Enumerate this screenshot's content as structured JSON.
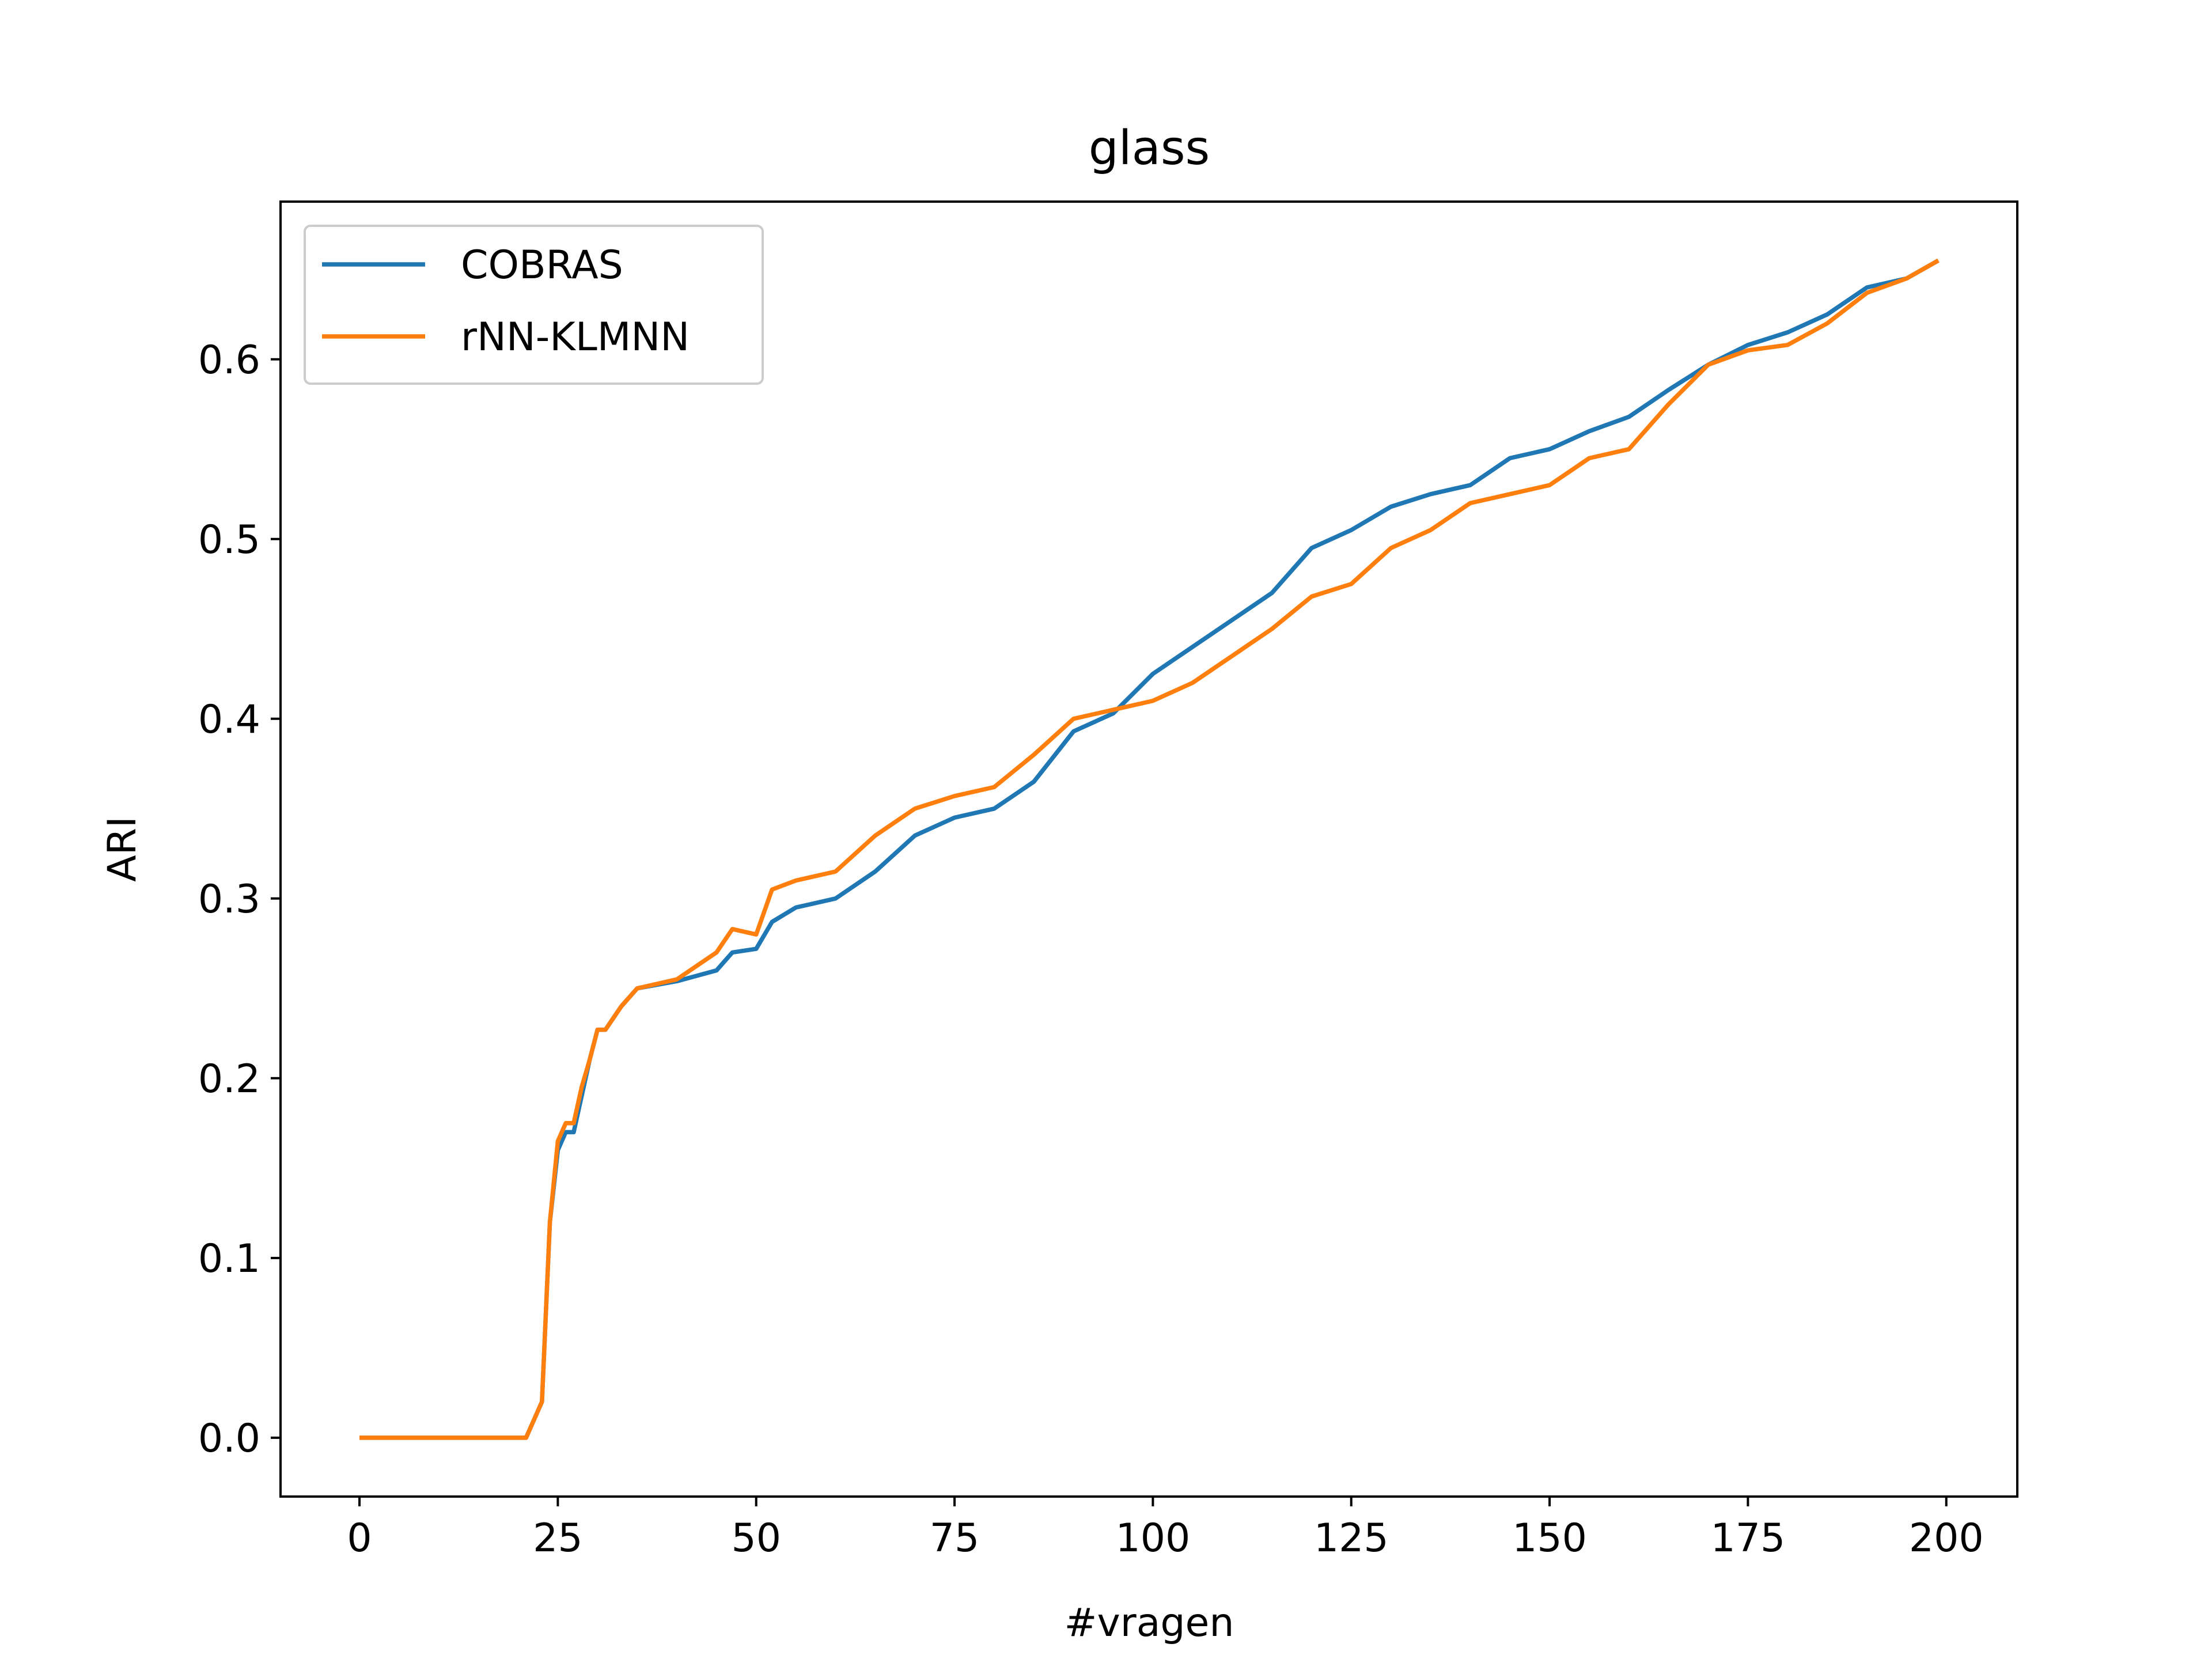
{
  "chart_data": {
    "type": "line",
    "title": "glass",
    "x_label": "#vragen",
    "y_label": "ARI",
    "x": [
      0,
      5,
      10,
      15,
      20,
      21,
      22,
      23,
      24,
      25,
      26,
      27,
      28,
      29,
      30,
      31,
      33,
      35,
      40,
      45,
      47,
      50,
      52,
      55,
      60,
      65,
      70,
      75,
      80,
      85,
      90,
      95,
      100,
      105,
      110,
      115,
      120,
      125,
      130,
      135,
      140,
      145,
      150,
      155,
      160,
      165,
      170,
      175,
      180,
      185,
      190,
      195,
      199
    ],
    "series": [
      {
        "name": "COBRAS",
        "color": "#1f77b4",
        "values": [
          0,
          0,
          0,
          0,
          0,
          0,
          0.01,
          0.02,
          0.12,
          0.16,
          0.17,
          0.17,
          0.19,
          0.21,
          0.227,
          0.227,
          0.24,
          0.25,
          0.254,
          0.26,
          0.27,
          0.272,
          0.287,
          0.295,
          0.3,
          0.315,
          0.335,
          0.345,
          0.35,
          0.365,
          0.393,
          0.403,
          0.425,
          0.44,
          0.455,
          0.47,
          0.495,
          0.505,
          0.518,
          0.525,
          0.53,
          0.545,
          0.55,
          0.56,
          0.568,
          0.583,
          0.597,
          0.608,
          0.615,
          0.625,
          0.64,
          0.645,
          0.655
        ]
      },
      {
        "name": "rNN-KLMNN",
        "color": "#ff7f0e",
        "values": [
          0,
          0,
          0,
          0,
          0,
          0,
          0.01,
          0.02,
          0.12,
          0.165,
          0.175,
          0.175,
          0.195,
          0.21,
          0.227,
          0.227,
          0.24,
          0.25,
          0.255,
          0.27,
          0.283,
          0.28,
          0.305,
          0.31,
          0.315,
          0.335,
          0.35,
          0.357,
          0.362,
          0.38,
          0.4,
          0.405,
          0.41,
          0.42,
          0.435,
          0.45,
          0.468,
          0.475,
          0.495,
          0.505,
          0.52,
          0.525,
          0.53,
          0.545,
          0.55,
          0.575,
          0.597,
          0.605,
          0.608,
          0.62,
          0.637,
          0.645,
          0.655
        ]
      }
    ],
    "xlim": [
      -9.95,
      208.95
    ],
    "ylim": [
      -0.03275,
      0.68775
    ],
    "xticks": [
      0,
      25,
      50,
      75,
      100,
      125,
      150,
      175,
      200
    ],
    "yticks": [
      {
        "value": 0,
        "label": "0.0"
      },
      0.1,
      0.2,
      0.3,
      0.4,
      0.5,
      0.6
    ],
    "legend": "upper-left"
  }
}
